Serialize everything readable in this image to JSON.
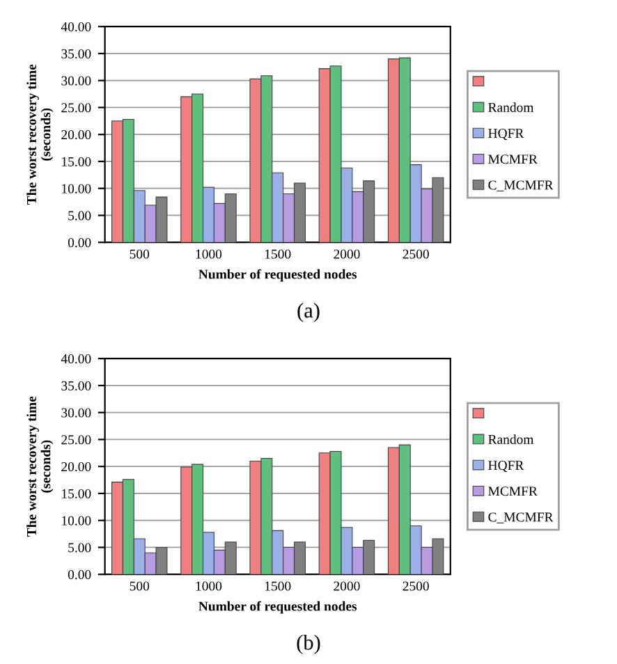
{
  "chart_data": [
    {
      "type": "bar",
      "xlabel": "Number of requested nodes",
      "ylabel": "The worst recovery time\n(seconds)",
      "categories": [
        "500",
        "1000",
        "1500",
        "2000",
        "2500"
      ],
      "series": [
        {
          "color": "#f08080",
          "values": [
            22.5,
            27.0,
            30.3,
            32.2,
            34.0
          ]
        },
        {
          "name": "Random",
          "color": "#5fbf7f",
          "values": [
            22.8,
            27.5,
            30.9,
            32.7,
            34.2
          ]
        },
        {
          "name": "HQFR",
          "color": "#9bb0e8",
          "values": [
            9.6,
            10.2,
            12.9,
            13.8,
            14.4
          ]
        },
        {
          "name": "MCMFR",
          "color": "#b89be0",
          "values": [
            6.9,
            7.2,
            9.0,
            9.4,
            9.9
          ]
        },
        {
          "name": "C_MCMFR",
          "color": "#808080",
          "values": [
            8.4,
            9.0,
            11.0,
            11.4,
            12.0
          ]
        }
      ],
      "ylim": [
        0,
        40
      ],
      "yticks": [
        {
          "value": 0,
          "label": "0.00"
        },
        {
          "value": 5,
          "label": "5.00"
        },
        {
          "value": 10,
          "label": "10.00"
        },
        {
          "value": 15,
          "label": "15.00"
        },
        {
          "value": 20,
          "label": "20.00"
        },
        {
          "value": 25,
          "label": "25.00"
        },
        {
          "value": 30,
          "label": "30.00"
        },
        {
          "value": 35,
          "label": "35.00"
        },
        {
          "value": 40,
          "label": "40.00"
        }
      ],
      "grid": "y",
      "legend": "right",
      "annotations": [
        "(a)"
      ]
    },
    {
      "type": "bar",
      "xlabel": "Number of requested nodes",
      "ylabel": "The worst recovery time\n(seconds)",
      "categories": [
        "500",
        "1000",
        "1500",
        "2000",
        "2500"
      ],
      "series": [
        {
          "color": "#f08080",
          "values": [
            17.1,
            19.9,
            21.0,
            22.5,
            23.5
          ]
        },
        {
          "name": "Random",
          "color": "#5fbf7f",
          "values": [
            17.6,
            20.4,
            21.5,
            22.8,
            24.0
          ]
        },
        {
          "name": "HQFR",
          "color": "#9bb0e8",
          "values": [
            6.6,
            7.8,
            8.1,
            8.7,
            9.0
          ]
        },
        {
          "name": "MCMFR",
          "color": "#b89be0",
          "values": [
            4.0,
            4.5,
            5.0,
            5.0,
            5.0
          ]
        },
        {
          "name": "C_MCMFR",
          "color": "#808080",
          "values": [
            5.0,
            6.0,
            6.0,
            6.3,
            6.6
          ]
        }
      ],
      "ylim": [
        0,
        40
      ],
      "yticks": [
        {
          "value": 0,
          "label": "0.00"
        },
        {
          "value": 5,
          "label": "5.00"
        },
        {
          "value": 10,
          "label": "10.00"
        },
        {
          "value": 15,
          "label": "15.00"
        },
        {
          "value": 20,
          "label": "20.00"
        },
        {
          "value": 25,
          "label": "25.00"
        },
        {
          "value": 30,
          "label": "30.00"
        },
        {
          "value": 35,
          "label": "35.00"
        },
        {
          "value": 40,
          "label": "40.00"
        }
      ],
      "grid": "y",
      "legend": "right",
      "annotations": [
        "(b)"
      ]
    }
  ]
}
